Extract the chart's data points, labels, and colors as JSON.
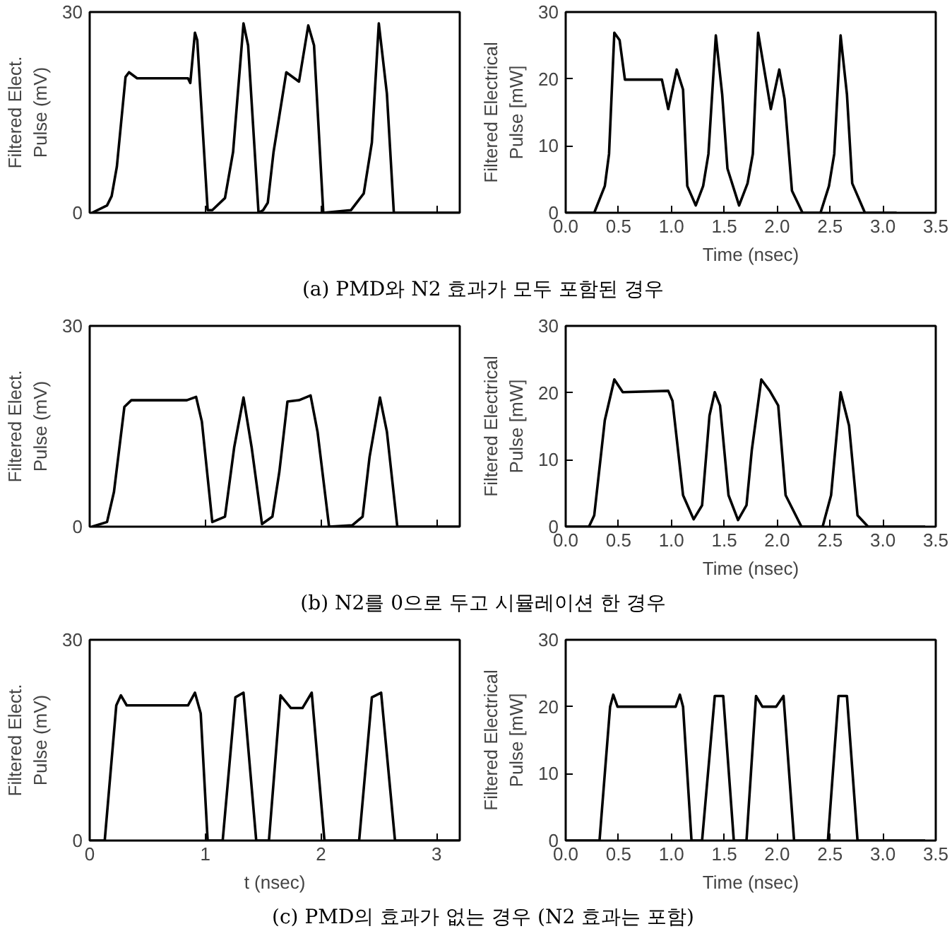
{
  "chart_data": [
    {
      "type": "line",
      "ylabel": "Filtered Elect.\nPulse (mV)",
      "xlim": [
        0,
        3.2
      ],
      "ylim": [
        0,
        30
      ],
      "xticks": [
        0,
        1,
        2,
        3
      ],
      "yticks": [
        0,
        30
      ],
      "tick_labels": "y",
      "annotations": [
        "(a) PMD와 N2 효과가 모두 포함된 경우"
      ],
      "series": [
        {
          "color": "#000000",
          "x": [
            0.02,
            0.15,
            0.19,
            0.235,
            0.31,
            0.34,
            0.41,
            0.85,
            0.87,
            0.91,
            0.93,
            1.02,
            1.06,
            1.17,
            1.24,
            1.33,
            1.37,
            1.46,
            1.5,
            1.54,
            1.59,
            1.7,
            1.81,
            1.89,
            1.94,
            2.02,
            2.26,
            2.37,
            2.44,
            2.5,
            2.57,
            2.63,
            3.2
          ],
          "values": [
            0,
            1.1,
            2.5,
            6.9,
            20.3,
            21,
            20.1,
            20.1,
            19.4,
            26.9,
            25.8,
            0.4,
            0.4,
            2.2,
            9.1,
            28.3,
            25,
            0,
            0.4,
            1.5,
            9.1,
            21,
            19.6,
            28,
            25,
            0,
            0.4,
            2.9,
            10.5,
            28.3,
            17.8,
            0,
            0
          ]
        }
      ]
    },
    {
      "type": "line",
      "xlabel": "Time (nsec)",
      "ylabel": "Filtered Electrical\nPulse [mW]",
      "xlim": [
        0,
        3.5
      ],
      "ylim": [
        0,
        30
      ],
      "xticks": [
        {
          "value": 0,
          "label": "0.0"
        },
        {
          "value": 0.5,
          "label": "0.5"
        },
        {
          "value": 1,
          "label": "1.0"
        },
        {
          "value": 1.5,
          "label": "1.5"
        },
        {
          "value": 2,
          "label": "2.0"
        },
        {
          "value": 2.5,
          "label": "2.5"
        },
        {
          "value": 3,
          "label": "3.0"
        },
        {
          "value": 3.5,
          "label": "3.5"
        }
      ],
      "yticks": [
        0,
        10,
        20,
        30
      ],
      "series": [
        {
          "color": "#000000",
          "x": [
            0,
            0.27,
            0.37,
            0.41,
            0.46,
            0.51,
            0.56,
            0.91,
            0.97,
            1.05,
            1.11,
            1.15,
            1.23,
            1.3,
            1.35,
            1.42,
            1.48,
            1.53,
            1.64,
            1.72,
            1.77,
            1.82,
            1.94,
            2.02,
            2.07,
            2.14,
            2.24,
            2.41,
            2.49,
            2.54,
            2.6,
            2.66,
            2.71,
            2.83,
            3.13
          ],
          "values": [
            0,
            0,
            4,
            8.8,
            26.9,
            25.8,
            19.9,
            19.9,
            15.5,
            21.4,
            18.4,
            4,
            1.1,
            4,
            8.8,
            26.5,
            17.7,
            6.6,
            1.1,
            4.4,
            8.8,
            26.9,
            15.5,
            21.4,
            17,
            3.3,
            0,
            0,
            4,
            8.8,
            26.5,
            17.7,
            4.4,
            0,
            0
          ]
        }
      ]
    },
    {
      "type": "line",
      "ylabel": "Filtered Elect.\nPulse (mV)",
      "xlim": [
        0,
        3.2
      ],
      "ylim": [
        0,
        30
      ],
      "xticks": [
        0,
        1,
        2,
        3
      ],
      "yticks": [
        0,
        30
      ],
      "tick_labels": "y",
      "annotations": [
        "(b) N2를 0으로 두고 시뮬레이션 한 경우"
      ],
      "series": [
        {
          "color": "#000000",
          "x": [
            0.02,
            0.15,
            0.21,
            0.3,
            0.36,
            0.84,
            0.92,
            0.97,
            1.06,
            1.17,
            1.25,
            1.33,
            1.4,
            1.49,
            1.58,
            1.64,
            1.71,
            1.81,
            1.91,
            1.97,
            2.07,
            2.27,
            2.36,
            2.42,
            2.51,
            2.57,
            2.66,
            3.2
          ],
          "values": [
            0,
            0.7,
            5.2,
            17.9,
            18.9,
            18.9,
            19.4,
            15.7,
            0.7,
            1.5,
            11.9,
            19.3,
            11.9,
            0.4,
            1.5,
            8.2,
            18.7,
            18.9,
            19.6,
            14.2,
            0,
            0.2,
            1.5,
            10.4,
            19.3,
            14.2,
            0,
            0
          ]
        }
      ]
    },
    {
      "type": "line",
      "xlabel": "Time (nsec)",
      "ylabel": "Filtered Electrical\nPulse [mW]",
      "xlim": [
        0,
        3.5
      ],
      "ylim": [
        0,
        30
      ],
      "xticks": [
        {
          "value": 0,
          "label": "0.0"
        },
        {
          "value": 0.5,
          "label": "0.5"
        },
        {
          "value": 1,
          "label": "1.0"
        },
        {
          "value": 1.5,
          "label": "1.5"
        },
        {
          "value": 2,
          "label": "2.0"
        },
        {
          "value": 2.5,
          "label": "2.5"
        },
        {
          "value": 3,
          "label": "3.0"
        },
        {
          "value": 3.5,
          "label": "3.5"
        }
      ],
      "yticks": [
        0,
        10,
        20,
        30
      ],
      "series": [
        {
          "color": "#000000",
          "x": [
            0,
            0.22,
            0.27,
            0.37,
            0.46,
            0.54,
            0.97,
            1.01,
            1.11,
            1.21,
            1.29,
            1.36,
            1.41,
            1.46,
            1.54,
            1.63,
            1.71,
            1.76,
            1.85,
            1.93,
            2.01,
            2.08,
            2.23,
            2.43,
            2.51,
            2.6,
            2.68,
            2.76,
            2.86,
            3.4
          ],
          "values": [
            0,
            0,
            1.7,
            15.9,
            22,
            20.1,
            20.3,
            18.8,
            4.7,
            1.1,
            3.2,
            16.6,
            20.1,
            18.1,
            4.7,
            1,
            3.2,
            11.4,
            22,
            20.3,
            18.1,
            4.7,
            0,
            0,
            4.7,
            20.1,
            15.1,
            1.7,
            0,
            0
          ]
        }
      ]
    },
    {
      "type": "line",
      "xlabel": "t (nsec)",
      "ylabel": "Filtered Elect.\nPulse (mV)",
      "xlim": [
        0,
        3.2
      ],
      "ylim": [
        0,
        30
      ],
      "xticks": [
        0,
        1,
        2,
        3
      ],
      "yticks": [
        0,
        30
      ],
      "annotations": [
        "(c) PMD의 효과가 없는 경우 (N2 효과는 포함)"
      ],
      "series": [
        {
          "color": "#000000",
          "x": [
            0,
            0.13,
            0.23,
            0.27,
            0.32,
            0.85,
            0.91,
            0.96,
            1.02,
            1.15,
            1.26,
            1.33,
            1.44,
            1.55,
            1.65,
            1.74,
            1.84,
            1.92,
            2.03,
            2.33,
            2.44,
            2.52,
            2.64,
            3.2
          ],
          "values": [
            0,
            0,
            20.2,
            21.7,
            20.2,
            20.2,
            22.1,
            19,
            0,
            0,
            21.4,
            22.1,
            0,
            0,
            21.7,
            19.8,
            19.8,
            22.1,
            0,
            0,
            21.4,
            22.1,
            0,
            0
          ]
        }
      ]
    },
    {
      "type": "line",
      "xlabel": "Time (nsec)",
      "ylabel": "Filtered Electrical\nPulse [mW]",
      "xlim": [
        0,
        3.5
      ],
      "ylim": [
        0,
        30
      ],
      "xticks": [
        {
          "value": 0,
          "label": "0.0"
        },
        {
          "value": 0.5,
          "label": "0.5"
        },
        {
          "value": 1,
          "label": "1.0"
        },
        {
          "value": 1.5,
          "label": "1.5"
        },
        {
          "value": 2,
          "label": "2.0"
        },
        {
          "value": 2.5,
          "label": "2.5"
        },
        {
          "value": 3,
          "label": "3.0"
        },
        {
          "value": 3.5,
          "label": "3.5"
        }
      ],
      "yticks": [
        0,
        10,
        20,
        30
      ],
      "series": [
        {
          "color": "#000000",
          "x": [
            0,
            0.32,
            0.42,
            0.45,
            0.49,
            1.04,
            1.08,
            1.11,
            1.19,
            1.29,
            1.41,
            1.49,
            1.59,
            1.71,
            1.8,
            1.86,
            1.99,
            2.06,
            2.16,
            2.48,
            2.58,
            2.66,
            2.76,
            3.4
          ],
          "values": [
            0,
            0,
            20,
            21.8,
            20,
            20,
            21.8,
            20,
            0,
            0,
            21.6,
            21.6,
            0,
            0,
            21.6,
            20,
            20,
            21.6,
            0,
            0,
            21.6,
            21.6,
            0,
            0
          ]
        }
      ]
    }
  ]
}
